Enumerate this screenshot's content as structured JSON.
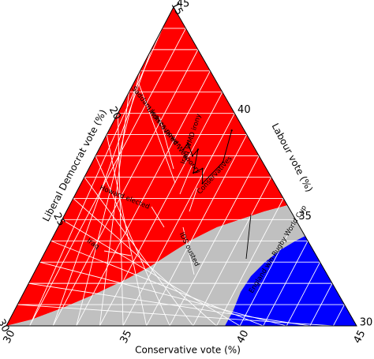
{
  "chart_data": {
    "type": "ternary",
    "axes": {
      "liberal_democrat": {
        "label": "Liberal Democrat vote (%)",
        "ticks": [
          15,
          20,
          25,
          30
        ],
        "tick_labels": [
          "15",
          "20",
          "25",
          "30"
        ],
        "range": [
          15,
          30
        ]
      },
      "labour": {
        "label": "Labour vote (%)",
        "ticks": [
          45,
          40,
          35,
          30
        ],
        "tick_labels": [
          "45",
          "40",
          "35",
          "30"
        ],
        "range": [
          30,
          45
        ]
      },
      "conservative": {
        "label": "Conservative vote (%)",
        "ticks": [
          30,
          35,
          40,
          45
        ],
        "tick_labels": [
          "30",
          "35",
          "40",
          "45"
        ],
        "range": [
          30,
          45
        ]
      }
    },
    "regions": [
      {
        "name": "labour_win",
        "color": "#ff0000"
      },
      {
        "name": "hung",
        "color": "#c0c0c0"
      },
      {
        "name": "conservative_win",
        "color": "#0000ff"
      }
    ],
    "gridlines": true,
    "trajectory_color": "#000000",
    "annotation_color": "#ffffff",
    "annotations": [
      {
        "text": "Saddam leaves power",
        "anchor_color": "#ffffff"
      },
      {
        "text": "Undiscovered Weaponry",
        "anchor_color": "#ffffff"
      },
      {
        "text": "Iraq WMD irony",
        "anchor_color": "#ffffff"
      },
      {
        "text": "Conservatives",
        "anchor_color": "#ffffff"
      },
      {
        "text": "Howard elected",
        "anchor_color": "#ffffff"
      },
      {
        "text": "IDS ousted",
        "anchor_color": "#ffffff"
      },
      {
        "text": "Iraq",
        "anchor_color": "#ffffff"
      },
      {
        "text": "England win Rugby World Cup",
        "anchor_color": "#000000"
      }
    ],
    "series": [
      {
        "type": "path",
        "points": [
          {
            "lib": 21.4,
            "lab": 40.5,
            "con": 38.1
          },
          {
            "lib": 21.1,
            "lab": 40.3,
            "con": 38.6
          },
          {
            "lib": 21.7,
            "lab": 39.4,
            "con": 38.9
          },
          {
            "lib": 21.4,
            "lab": 39.1,
            "con": 39.5
          },
          {
            "lib": 22.5,
            "lab": 38.7,
            "con": 38.8
          },
          {
            "lib": 22.3,
            "lab": 38.1,
            "con": 39.6
          },
          {
            "lib": 23.0,
            "lab": 37.6,
            "con": 39.4
          },
          {
            "lib": 22.0,
            "lab": 36.5,
            "con": 41.5
          },
          {
            "lib": 20.5,
            "lab": 35.9,
            "con": 43.6
          }
        ]
      }
    ]
  }
}
